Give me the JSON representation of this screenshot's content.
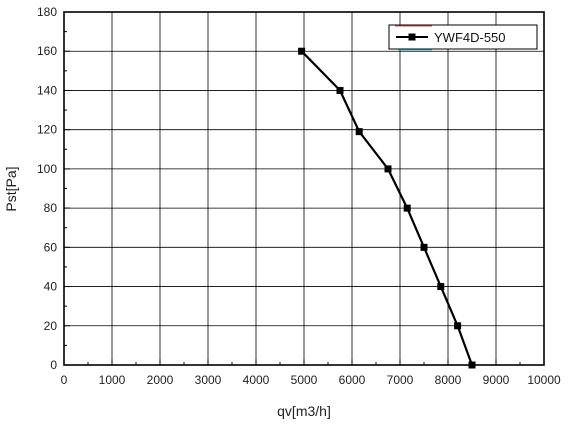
{
  "chart_data": {
    "type": "line",
    "title": "",
    "xlabel": "qv[m3/h]",
    "ylabel": "Pst[Pa]",
    "xlim": [
      0,
      10000
    ],
    "ylim": [
      0,
      180
    ],
    "x_ticks": [
      0,
      1000,
      2000,
      3000,
      4000,
      5000,
      6000,
      7000,
      8000,
      9000,
      10000
    ],
    "y_ticks": [
      0,
      20,
      40,
      60,
      80,
      100,
      120,
      140,
      160,
      180
    ],
    "x_tick_labels": [
      "0",
      "1000",
      "2000",
      "3000",
      "4000",
      "5000",
      "6000",
      "7000",
      "8000",
      "9000",
      "10000"
    ],
    "y_tick_labels": [
      "0",
      "20",
      "40",
      "60",
      "80",
      "100",
      "120",
      "140",
      "160",
      "180"
    ],
    "grid": true,
    "legend_position": "top-right",
    "series": [
      {
        "name": "YWF4D-550",
        "color": "#000000",
        "marker": "square",
        "x": [
          4950,
          5750,
          6150,
          6750,
          7150,
          7500,
          7850,
          8200,
          8500
        ],
        "y": [
          160,
          140,
          119,
          100,
          80,
          60,
          40,
          20,
          0
        ]
      }
    ]
  }
}
